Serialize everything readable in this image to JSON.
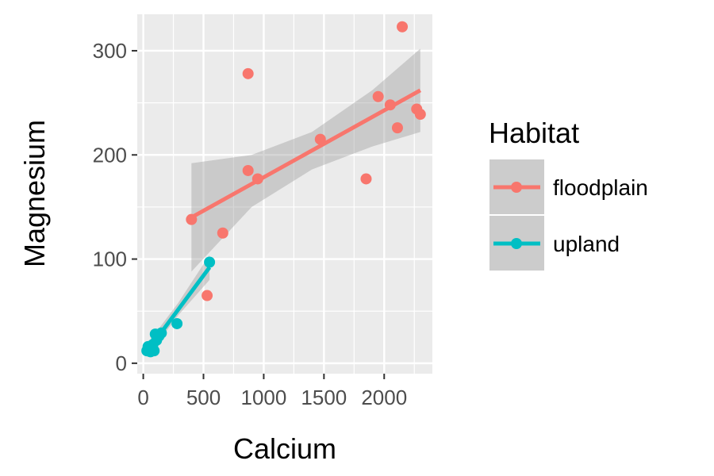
{
  "chart_data": {
    "type": "scatter",
    "title": "",
    "xlabel": "Calcium",
    "ylabel": "Magnesium",
    "xlim": [
      -50,
      2400
    ],
    "ylim": [
      -10,
      335
    ],
    "x_ticks": [
      0,
      500,
      1000,
      1500,
      2000
    ],
    "x_tick_labels": [
      "0",
      "500",
      "1000",
      "1500",
      "2000"
    ],
    "y_ticks": [
      0,
      100,
      200,
      300
    ],
    "y_tick_labels": [
      "0",
      "100",
      "200",
      "300"
    ],
    "grid": true,
    "legend": {
      "title": "Habitat",
      "position": "right",
      "entries": [
        {
          "label": "floodplain",
          "color": "#F8766D"
        },
        {
          "label": "upland",
          "color": "#00BFC4"
        }
      ]
    },
    "series": [
      {
        "name": "floodplain",
        "color": "#F8766D",
        "points": [
          {
            "x": 400,
            "y": 138
          },
          {
            "x": 530,
            "y": 65
          },
          {
            "x": 660,
            "y": 125
          },
          {
            "x": 870,
            "y": 185
          },
          {
            "x": 870,
            "y": 278
          },
          {
            "x": 950,
            "y": 177
          },
          {
            "x": 1470,
            "y": 215
          },
          {
            "x": 1850,
            "y": 177
          },
          {
            "x": 1950,
            "y": 256
          },
          {
            "x": 2050,
            "y": 248
          },
          {
            "x": 2110,
            "y": 226
          },
          {
            "x": 2150,
            "y": 323
          },
          {
            "x": 2270,
            "y": 244
          },
          {
            "x": 2300,
            "y": 239
          }
        ],
        "fit": {
          "x": [
            400,
            2300
          ],
          "y": [
            140,
            262
          ]
        },
        "ci": [
          {
            "x": 400,
            "lo": 88,
            "hi": 192
          },
          {
            "x": 900,
            "lo": 150,
            "hi": 200
          },
          {
            "x": 1400,
            "lo": 186,
            "hi": 222
          },
          {
            "x": 1900,
            "lo": 208,
            "hi": 262
          },
          {
            "x": 2300,
            "lo": 222,
            "hi": 302
          }
        ]
      },
      {
        "name": "upland",
        "color": "#00BFC4",
        "points": [
          {
            "x": 30,
            "y": 12
          },
          {
            "x": 40,
            "y": 16
          },
          {
            "x": 50,
            "y": 14
          },
          {
            "x": 60,
            "y": 11
          },
          {
            "x": 70,
            "y": 13
          },
          {
            "x": 80,
            "y": 18
          },
          {
            "x": 90,
            "y": 12
          },
          {
            "x": 100,
            "y": 28
          },
          {
            "x": 110,
            "y": 22
          },
          {
            "x": 130,
            "y": 26
          },
          {
            "x": 150,
            "y": 29
          },
          {
            "x": 280,
            "y": 38
          },
          {
            "x": 550,
            "y": 97
          }
        ],
        "fit": {
          "x": [
            30,
            550
          ],
          "y": [
            11,
            92
          ]
        },
        "ci": [
          {
            "x": 30,
            "lo": 6,
            "hi": 18
          },
          {
            "x": 290,
            "lo": 46,
            "hi": 58
          },
          {
            "x": 550,
            "lo": 80,
            "hi": 104
          }
        ]
      }
    ]
  }
}
